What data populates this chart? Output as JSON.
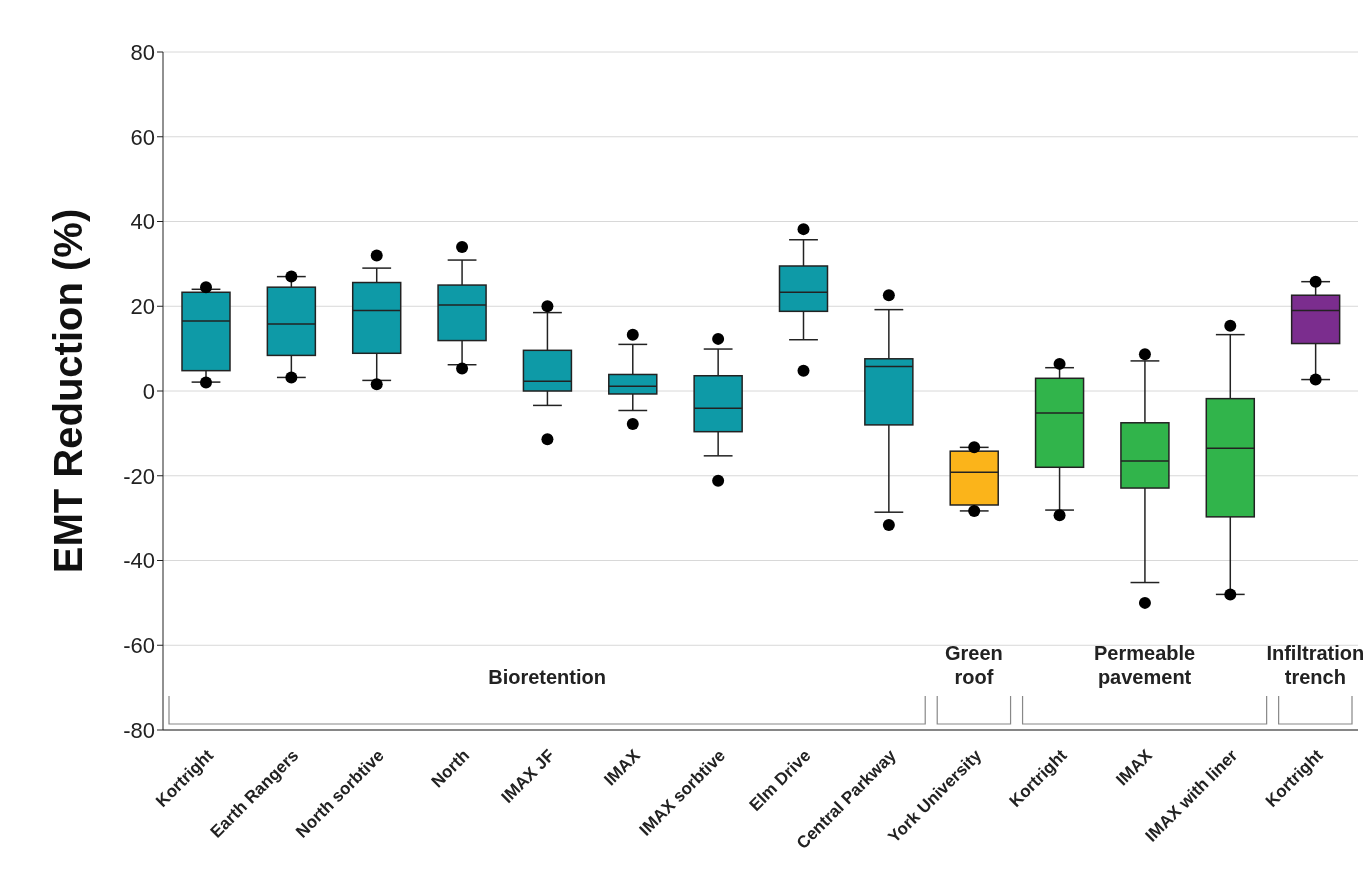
{
  "chart_data": {
    "type": "box",
    "ylabel": "EMT Reduction (%)",
    "categories": [
      "Kortright",
      "Earth Rangers",
      "North sorbtive",
      "North",
      "IMAX JF",
      "IMAX",
      "IMAX sorbtive",
      "Elm Drive",
      "Central Parkway",
      "York University",
      "Kortright",
      "IMAX",
      "IMAX with liner",
      "Kortright"
    ],
    "colors": [
      "#0e9aa7",
      "#0e9aa7",
      "#0e9aa7",
      "#0e9aa7",
      "#0e9aa7",
      "#0e9aa7",
      "#0e9aa7",
      "#0e9aa7",
      "#0e9aa7",
      "#fbb41a",
      "#31b44b",
      "#31b44b",
      "#31b44b",
      "#7b2d8e"
    ],
    "boxes": [
      {
        "low": 2.1,
        "q1": 4.8,
        "median": 16.5,
        "q3": 23.3,
        "high": 24,
        "outliers": [
          2,
          24.5
        ]
      },
      {
        "low": 3.2,
        "q1": 8.4,
        "median": 15.8,
        "q3": 24.5,
        "high": 27,
        "outliers": [
          3.2,
          27
        ]
      },
      {
        "low": 2.5,
        "q1": 8.9,
        "median": 19,
        "q3": 25.6,
        "high": 29,
        "outliers": [
          1.6,
          32
        ]
      },
      {
        "low": 6.2,
        "q1": 11.9,
        "median": 20.3,
        "q3": 25,
        "high": 30.9,
        "outliers": [
          5.3,
          34
        ]
      },
      {
        "low": -3.4,
        "q1": 0,
        "median": 2.3,
        "q3": 9.6,
        "high": 18.5,
        "outliers": [
          -11.4,
          20
        ]
      },
      {
        "low": -4.6,
        "q1": -0.7,
        "median": 1.1,
        "q3": 3.9,
        "high": 11,
        "outliers": [
          -7.8,
          13.3
        ]
      },
      {
        "low": -15.3,
        "q1": -9.6,
        "median": -4.1,
        "q3": 3.6,
        "high": 9.9,
        "outliers": [
          -21.2,
          12.3
        ]
      },
      {
        "low": 12.1,
        "q1": 18.8,
        "median": 23.3,
        "q3": 29.5,
        "high": 35.7,
        "outliers": [
          4.8,
          38.2
        ]
      },
      {
        "low": -28.6,
        "q1": -8,
        "median": 5.8,
        "q3": 7.6,
        "high": 19.2,
        "outliers": [
          -31.6,
          22.6
        ]
      },
      {
        "low": -28.3,
        "q1": -26.9,
        "median": -19.2,
        "q3": -14.2,
        "high": -13.3,
        "outliers": [
          -28.3,
          -13.3
        ]
      },
      {
        "low": -28.1,
        "q1": -18,
        "median": -5.2,
        "q3": 3,
        "high": 5.5,
        "outliers": [
          -29.3,
          6.4
        ]
      },
      {
        "low": -45.2,
        "q1": -22.9,
        "median": -16.5,
        "q3": -7.5,
        "high": 7.1,
        "outliers": [
          -50,
          8.7
        ]
      },
      {
        "low": -48,
        "q1": -29.7,
        "median": -13.5,
        "q3": -1.8,
        "high": 13.3,
        "outliers": [
          -48,
          15.4
        ]
      },
      {
        "low": 2.7,
        "q1": 11.2,
        "median": 19,
        "q3": 22.6,
        "high": 25.8,
        "outliers": [
          2.7,
          25.8
        ]
      }
    ],
    "annotations": [
      "Bioretention",
      "Green roof",
      "Permeable pavement",
      "Infiltration trench"
    ],
    "ylim": [
      -80,
      80
    ],
    "yticks": [
      -80,
      -60,
      -40,
      -20,
      0,
      20,
      40,
      60,
      80
    ],
    "grid": "y"
  }
}
